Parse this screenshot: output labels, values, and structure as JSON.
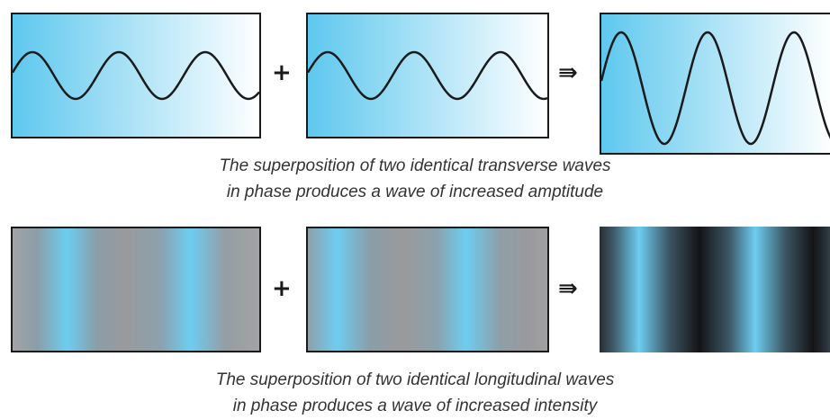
{
  "transverse": {
    "operator_plus": "+",
    "operator_arrow": "⇛",
    "caption_line1": "The superposition of two identical transverse waves",
    "caption_line2": "in phase produces a wave of increased amptitude",
    "colors": {
      "gradient_start": "#5ec8ee",
      "gradient_end": "#ffffff",
      "stroke": "#1a1a1a"
    }
  },
  "longitudinal": {
    "operator_plus": "+",
    "operator_arrow": "⇛",
    "caption_line1": "The superposition of two identical longitudinal waves",
    "caption_line2": "in phase produces a wave of increased intensity",
    "colors": {
      "compression": "#6dcdf0",
      "rarefaction": "#9a9a9c",
      "intense_rarefaction": "#141416"
    }
  }
}
